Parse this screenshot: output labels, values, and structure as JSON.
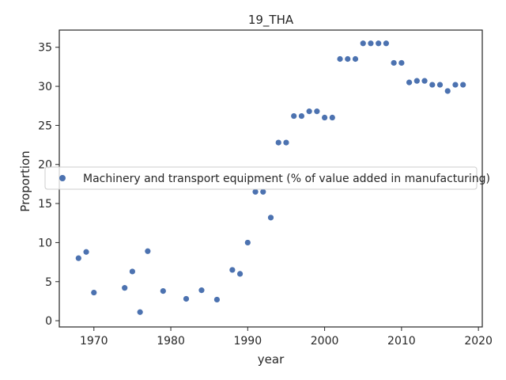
{
  "chart_data": {
    "type": "scatter",
    "title": "19_THA",
    "xlabel": "year",
    "ylabel": "Proportion",
    "xlim": [
      1965.5,
      2020.5
    ],
    "ylim": [
      -0.8,
      37.2
    ],
    "xticks": [
      1970,
      1980,
      1990,
      2000,
      2010,
      2020
    ],
    "yticks": [
      0,
      5,
      10,
      15,
      20,
      25,
      30,
      35
    ],
    "grid": false,
    "legend_position": "center-left",
    "series": [
      {
        "name": "Machinery and transport equipment (% of value added in manufacturing)",
        "color": "#4c72b0",
        "x": [
          1968,
          1969,
          1970,
          1974,
          1975,
          1976,
          1977,
          1979,
          1982,
          1984,
          1986,
          1988,
          1989,
          1990,
          1991,
          1992,
          1993,
          1994,
          1995,
          1996,
          1997,
          1998,
          1999,
          2000,
          2001,
          2002,
          2003,
          2004,
          2005,
          2006,
          2007,
          2008,
          2009,
          2010,
          2011,
          2012,
          2013,
          2014,
          2015,
          2016,
          2017,
          2018
        ],
        "y": [
          8.0,
          8.8,
          3.6,
          4.2,
          6.3,
          1.1,
          8.9,
          3.8,
          2.8,
          3.9,
          2.7,
          6.5,
          6.0,
          10.0,
          16.5,
          16.5,
          13.2,
          22.8,
          22.8,
          26.2,
          26.2,
          26.8,
          26.8,
          26.0,
          26.0,
          33.5,
          33.5,
          33.5,
          35.5,
          35.5,
          35.5,
          35.5,
          33.0,
          33.0,
          30.5,
          30.7,
          30.7,
          30.2,
          30.2,
          29.4,
          30.2,
          30.2
        ]
      }
    ]
  }
}
